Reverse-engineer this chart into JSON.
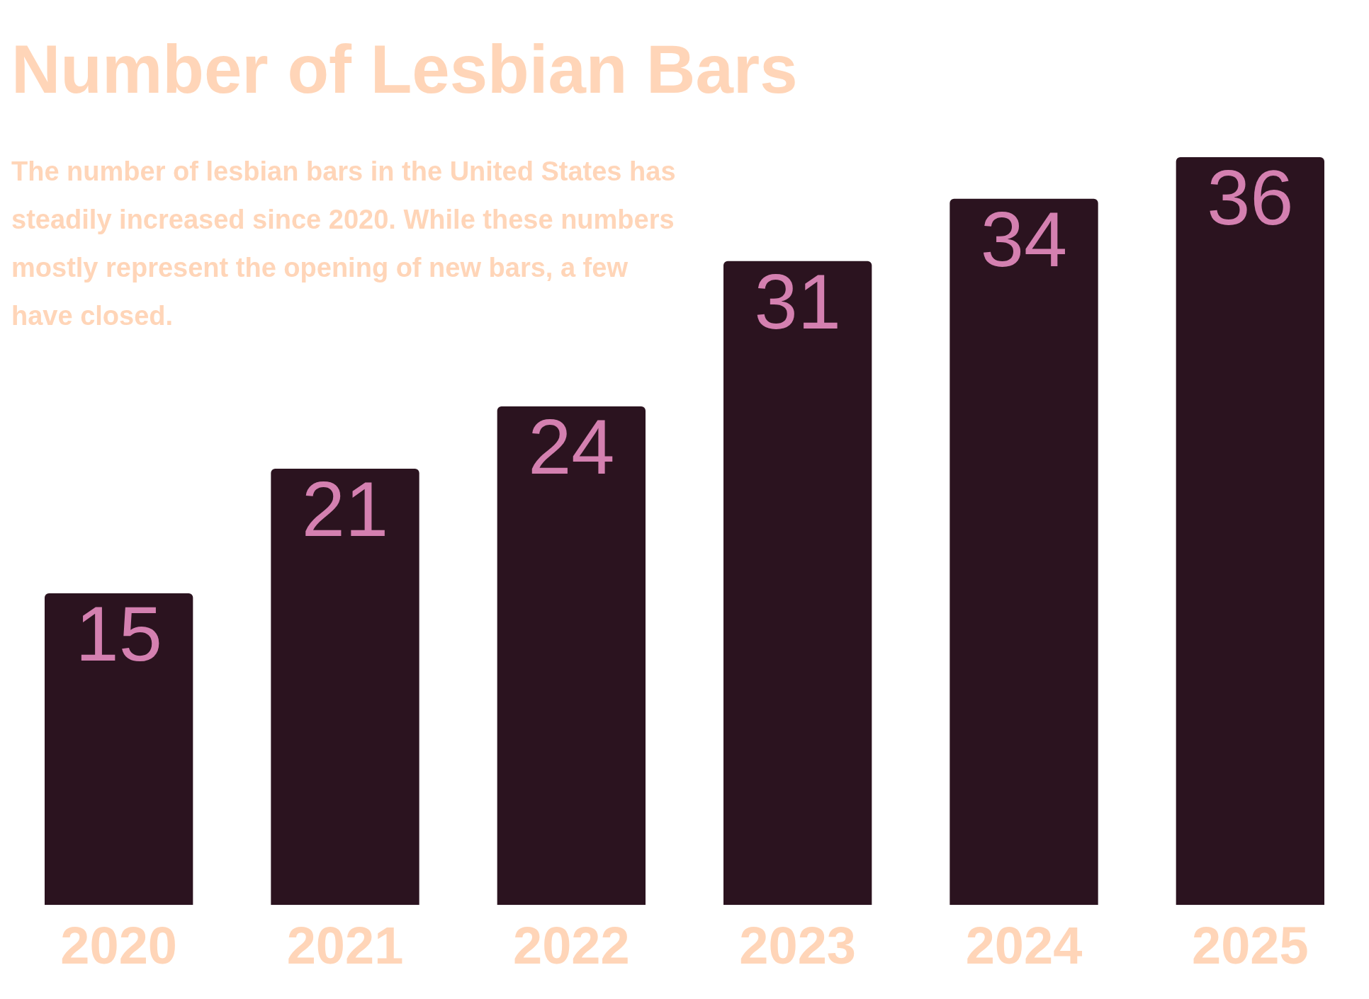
{
  "chart_data": {
    "type": "bar",
    "title": "Number of Lesbian Bars",
    "subtitle": "The number of lesbian bars in the United States has steadily increased since 2020. While these numbers mostly represent the opening of new bars, a few have closed.",
    "categories": [
      "2020",
      "2021",
      "2022",
      "2023",
      "2024",
      "2025"
    ],
    "values": [
      15,
      21,
      24,
      31,
      34,
      36
    ],
    "color": "#2b131f",
    "data_labels": true,
    "grid": false,
    "legend": false
  }
}
